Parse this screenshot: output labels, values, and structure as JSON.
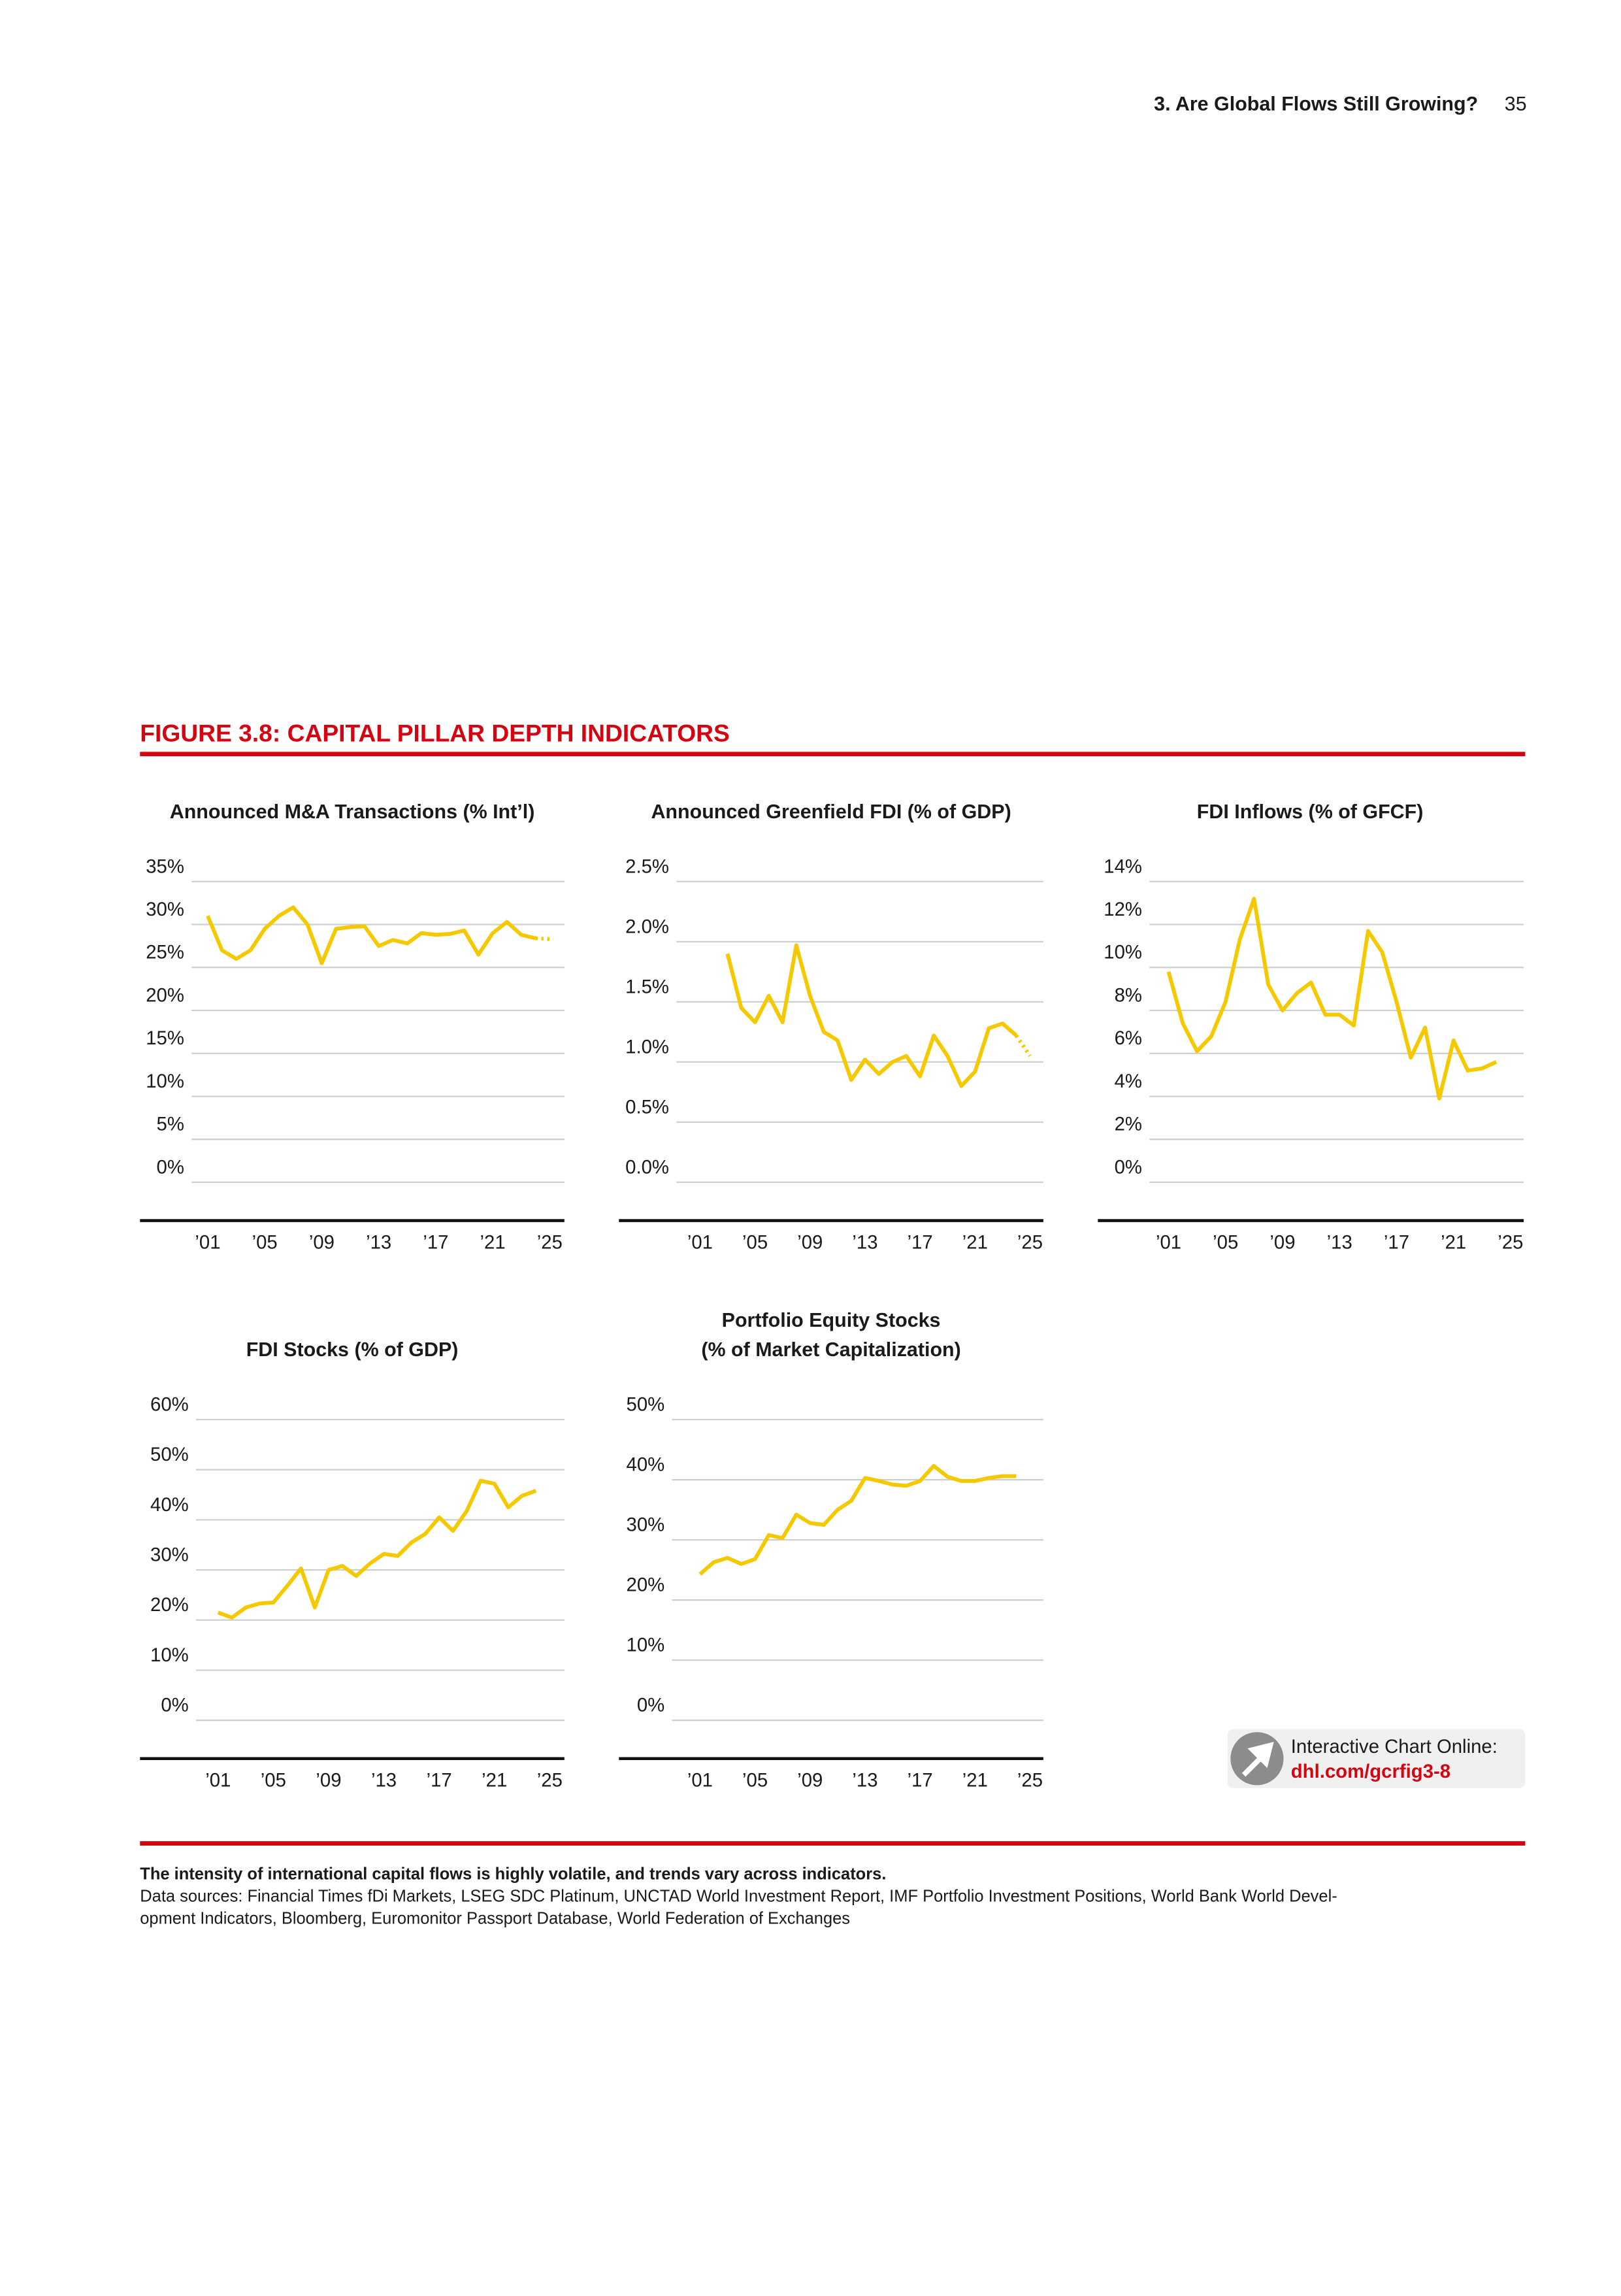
{
  "header": {
    "section": "3. Are Global Flows Still Growing?",
    "page": "35"
  },
  "figure_title": "FIGURE 3.8: CAPITAL PILLAR DEPTH INDICATORS",
  "chart_data": [
    {
      "type": "line",
      "title": "Announced M&A Transactions (% Int’l)",
      "color": "#f5c900",
      "dotted_last_segment": true,
      "x": [
        2001,
        2002,
        2003,
        2004,
        2005,
        2006,
        2007,
        2008,
        2009,
        2010,
        2011,
        2012,
        2013,
        2014,
        2015,
        2016,
        2017,
        2018,
        2019,
        2020,
        2021,
        2022,
        2023,
        2024,
        2025
      ],
      "values": [
        31,
        27,
        26,
        27,
        29.5,
        31,
        32,
        30,
        25.5,
        29.5,
        29.7,
        29.8,
        27.5,
        28.2,
        27.8,
        29,
        28.8,
        28.9,
        29.3,
        26.5,
        29,
        30.3,
        28.8,
        28.4,
        28.3
      ],
      "xlim": [
        2000,
        2026
      ],
      "xticks": [
        {
          "value": 2001,
          "label": "’01"
        },
        {
          "value": 2005,
          "label": "’05"
        },
        {
          "value": 2009,
          "label": "’09"
        },
        {
          "value": 2013,
          "label": "’13"
        },
        {
          "value": 2017,
          "label": "’17"
        },
        {
          "value": 2021,
          "label": "’21"
        },
        {
          "value": 2025,
          "label": "’25"
        }
      ],
      "ylim": [
        0,
        35
      ],
      "yticks": [
        {
          "value": 0,
          "label": "0%"
        },
        {
          "value": 5,
          "label": "5%"
        },
        {
          "value": 10,
          "label": "10%"
        },
        {
          "value": 15,
          "label": "15%"
        },
        {
          "value": 20,
          "label": "20%"
        },
        {
          "value": 25,
          "label": "25%"
        },
        {
          "value": 30,
          "label": "30%"
        },
        {
          "value": 35,
          "label": "35%"
        }
      ],
      "grid": true
    },
    {
      "type": "line",
      "title": "Announced Greenfield FDI (% of GDP)",
      "color": "#f5c900",
      "dotted_last_segment": true,
      "x": [
        2003,
        2004,
        2005,
        2006,
        2007,
        2008,
        2009,
        2010,
        2011,
        2012,
        2013,
        2014,
        2015,
        2016,
        2017,
        2018,
        2019,
        2020,
        2021,
        2022,
        2023,
        2024,
        2025
      ],
      "values": [
        1.9,
        1.45,
        1.33,
        1.55,
        1.33,
        1.97,
        1.55,
        1.25,
        1.18,
        0.85,
        1.02,
        0.9,
        1.0,
        1.05,
        0.88,
        1.22,
        1.05,
        0.8,
        0.92,
        1.28,
        1.32,
        1.22,
        1.05
      ],
      "xlim": [
        2000,
        2026
      ],
      "xticks": [
        {
          "value": 2001,
          "label": "’01"
        },
        {
          "value": 2005,
          "label": "’05"
        },
        {
          "value": 2009,
          "label": "’09"
        },
        {
          "value": 2013,
          "label": "’13"
        },
        {
          "value": 2017,
          "label": "’17"
        },
        {
          "value": 2021,
          "label": "’21"
        },
        {
          "value": 2025,
          "label": "’25"
        }
      ],
      "ylim": [
        0,
        2.5
      ],
      "yticks": [
        {
          "value": 0,
          "label": "0.0%"
        },
        {
          "value": 0.5,
          "label": "0.5%"
        },
        {
          "value": 1,
          "label": "1.0%"
        },
        {
          "value": 1.5,
          "label": "1.5%"
        },
        {
          "value": 2,
          "label": "2.0%"
        },
        {
          "value": 2.5,
          "label": "2.5%"
        }
      ],
      "grid": true
    },
    {
      "type": "line",
      "title": "FDI Inflows (% of GFCF)",
      "color": "#f5c900",
      "dotted_last_segment": false,
      "x": [
        2001,
        2002,
        2003,
        2004,
        2005,
        2006,
        2007,
        2008,
        2009,
        2010,
        2011,
        2012,
        2013,
        2014,
        2015,
        2016,
        2017,
        2018,
        2019,
        2020,
        2021,
        2022,
        2023,
        2024
      ],
      "values": [
        9.8,
        7.4,
        6.1,
        6.8,
        8.4,
        11.3,
        13.2,
        9.2,
        8.0,
        8.8,
        9.3,
        7.8,
        7.8,
        7.3,
        11.7,
        10.7,
        8.4,
        5.8,
        7.2,
        3.9,
        6.6,
        5.2,
        5.3,
        5.6
      ],
      "xlim": [
        2000,
        2026
      ],
      "xticks": [
        {
          "value": 2001,
          "label": "’01"
        },
        {
          "value": 2005,
          "label": "’05"
        },
        {
          "value": 2009,
          "label": "’09"
        },
        {
          "value": 2013,
          "label": "’13"
        },
        {
          "value": 2017,
          "label": "’17"
        },
        {
          "value": 2021,
          "label": "’21"
        },
        {
          "value": 2025,
          "label": "’25"
        }
      ],
      "ylim": [
        0,
        14
      ],
      "yticks": [
        {
          "value": 0,
          "label": "0%"
        },
        {
          "value": 2,
          "label": "2%"
        },
        {
          "value": 4,
          "label": "4%"
        },
        {
          "value": 6,
          "label": "6%"
        },
        {
          "value": 8,
          "label": "8%"
        },
        {
          "value": 10,
          "label": "10%"
        },
        {
          "value": 12,
          "label": "12%"
        },
        {
          "value": 14,
          "label": "14%"
        }
      ],
      "grid": true
    },
    {
      "type": "line",
      "title": "FDI Stocks (% of GDP)",
      "color": "#f5c900",
      "dotted_last_segment": false,
      "x": [
        2001,
        2002,
        2003,
        2004,
        2005,
        2006,
        2007,
        2008,
        2009,
        2010,
        2011,
        2012,
        2013,
        2014,
        2015,
        2016,
        2017,
        2018,
        2019,
        2020,
        2021,
        2022,
        2023,
        2024
      ],
      "values": [
        21.5,
        20.5,
        22.5,
        23.3,
        23.5,
        26.8,
        30.3,
        22.5,
        30,
        30.8,
        28.8,
        31.3,
        33.2,
        32.8,
        35.5,
        37.2,
        40.5,
        37.8,
        41.8,
        47.8,
        47.2,
        42.5,
        44.8,
        45.8
      ],
      "xlim": [
        2000,
        2026
      ],
      "xticks": [
        {
          "value": 2001,
          "label": "’01"
        },
        {
          "value": 2005,
          "label": "’05"
        },
        {
          "value": 2009,
          "label": "’09"
        },
        {
          "value": 2013,
          "label": "’13"
        },
        {
          "value": 2017,
          "label": "’17"
        },
        {
          "value": 2021,
          "label": "’21"
        },
        {
          "value": 2025,
          "label": "’25"
        }
      ],
      "ylim": [
        0,
        60
      ],
      "yticks": [
        {
          "value": 0,
          "label": "0%"
        },
        {
          "value": 10,
          "label": "10%"
        },
        {
          "value": 20,
          "label": "20%"
        },
        {
          "value": 30,
          "label": "30%"
        },
        {
          "value": 40,
          "label": "40%"
        },
        {
          "value": 50,
          "label": "50%"
        },
        {
          "value": 60,
          "label": "60%"
        }
      ],
      "grid": true
    },
    {
      "type": "line",
      "title": [
        "Portfolio Equity Stocks",
        "(% of Market Capitalization)"
      ],
      "color": "#f5c900",
      "dotted_last_segment": false,
      "x": [
        2001,
        2002,
        2003,
        2004,
        2005,
        2006,
        2007,
        2008,
        2009,
        2010,
        2011,
        2012,
        2013,
        2014,
        2015,
        2016,
        2017,
        2018,
        2019,
        2020,
        2021,
        2022,
        2023,
        2024
      ],
      "values": [
        24.3,
        26.3,
        27,
        26,
        26.8,
        30.8,
        30.3,
        34.2,
        32.8,
        32.5,
        35,
        36.5,
        40.3,
        39.8,
        39.2,
        39,
        39.8,
        42.3,
        40.5,
        39.8,
        39.8,
        40.3,
        40.6,
        40.6
      ],
      "xlim": [
        2000,
        2026
      ],
      "xticks": [
        {
          "value": 2001,
          "label": "’01"
        },
        {
          "value": 2005,
          "label": "’05"
        },
        {
          "value": 2009,
          "label": "’09"
        },
        {
          "value": 2013,
          "label": "’13"
        },
        {
          "value": 2017,
          "label": "’17"
        },
        {
          "value": 2021,
          "label": "’21"
        },
        {
          "value": 2025,
          "label": "’25"
        }
      ],
      "ylim": [
        0,
        50
      ],
      "yticks": [
        {
          "value": 0,
          "label": "0%"
        },
        {
          "value": 10,
          "label": "10%"
        },
        {
          "value": 20,
          "label": "20%"
        },
        {
          "value": 30,
          "label": "30%"
        },
        {
          "value": 40,
          "label": "40%"
        },
        {
          "value": 50,
          "label": "50%"
        }
      ],
      "grid": true
    }
  ],
  "link": {
    "label": "Interactive Chart Online:",
    "url": "dhl.com/gcrfig3-8"
  },
  "notes": {
    "takeaway": "The intensity of international capital flows is highly volatile, and trends vary across indicators.",
    "sources": [
      "Data sources: Financial Times fDi Markets, LSEG SDC Platinum, UNCTAD World Investment Report, IMF Portfolio Investment Positions, World Bank World Devel-",
      "opment Indicators, Bloomberg, Euromonitor Passport Database, World Federation of Exchanges"
    ]
  }
}
